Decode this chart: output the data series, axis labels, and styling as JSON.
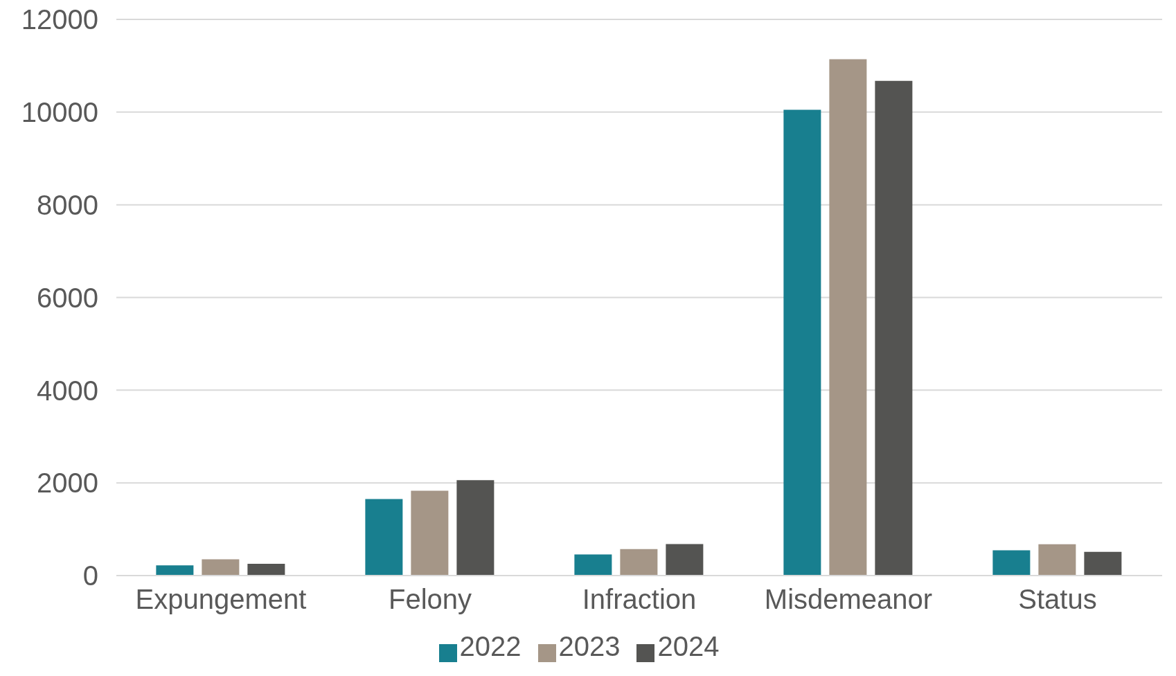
{
  "chart_data": {
    "type": "bar",
    "categories": [
      "Expungement",
      "Felony",
      "Infraction",
      "Misdemeanor",
      "Status"
    ],
    "series": [
      {
        "name": "2022",
        "color": "#187f8f",
        "values": [
          220,
          1650,
          455,
          10050,
          545
        ]
      },
      {
        "name": "2023",
        "color": "#a59687",
        "values": [
          350,
          1830,
          570,
          11140,
          675
        ]
      },
      {
        "name": "2024",
        "color": "#545452",
        "values": [
          255,
          2060,
          680,
          10675,
          510
        ]
      }
    ],
    "ylim": [
      0,
      12000
    ],
    "yticks": [
      0,
      2000,
      4000,
      6000,
      8000,
      10000,
      12000
    ],
    "grid": "y",
    "legend": "bottom"
  }
}
